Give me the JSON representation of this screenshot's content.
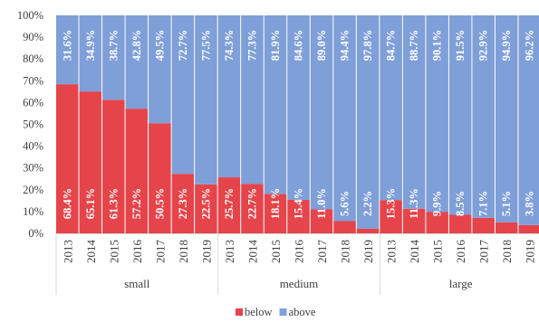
{
  "chart_data": {
    "type": "bar",
    "stacked": "percent",
    "groups": [
      {
        "name": "small",
        "categories": [
          "2013",
          "2014",
          "2015",
          "2016",
          "2017",
          "2018",
          "2019"
        ],
        "below": [
          68.4,
          65.1,
          61.3,
          57.2,
          50.5,
          27.3,
          22.5
        ],
        "above": [
          31.6,
          34.9,
          38.7,
          42.8,
          49.5,
          72.7,
          77.5
        ]
      },
      {
        "name": "medium",
        "categories": [
          "2013",
          "2014",
          "2015",
          "2016",
          "2017",
          "2018",
          "2019"
        ],
        "below": [
          25.7,
          22.7,
          18.1,
          15.4,
          11.0,
          5.6,
          2.2
        ],
        "above": [
          74.3,
          77.3,
          81.9,
          84.6,
          89.0,
          94.4,
          97.8
        ]
      },
      {
        "name": "large",
        "categories": [
          "2013",
          "2014",
          "2015",
          "2016",
          "2017",
          "2018",
          "2019"
        ],
        "below": [
          15.3,
          11.3,
          9.9,
          8.5,
          7.1,
          5.1,
          3.8
        ],
        "above": [
          84.7,
          88.7,
          90.1,
          91.5,
          92.9,
          94.9,
          96.2
        ]
      }
    ],
    "series": [
      {
        "name": "below",
        "color": "#E5444A"
      },
      {
        "name": "above",
        "color": "#7F9FD8"
      }
    ],
    "ylim": [
      0,
      100
    ],
    "yticks": [
      "0%",
      "10%",
      "20%",
      "30%",
      "40%",
      "50%",
      "60%",
      "70%",
      "80%",
      "90%",
      "100%"
    ],
    "label_format": "0.0%",
    "grid": false,
    "legend_position": "bottom"
  }
}
